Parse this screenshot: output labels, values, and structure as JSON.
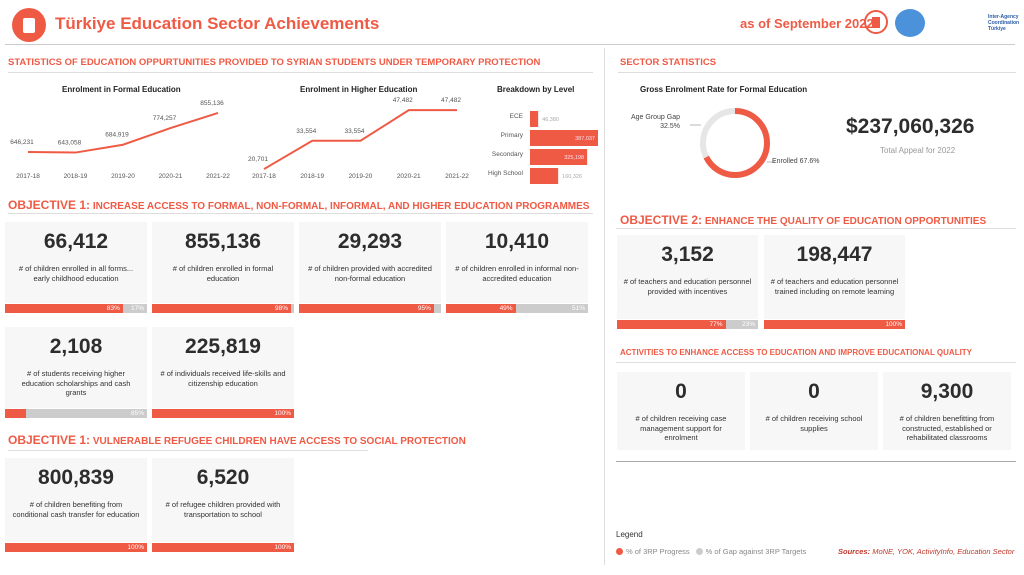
{
  "header": {
    "title": "Türkiye Education Sector Achievements",
    "as_of": "as of September 2022",
    "partner_text": "Inter-Agency Coordination Türkiye"
  },
  "left": {
    "section_title": "STATISTICS OF EDUCATION OPPURTUNITIES PROVIDED TO SYRIAN STUDENTS UNDER TEMPORARY PROTECTION",
    "objective1a": {
      "prefix": "OBJECTIVE 1:",
      "text": "INCREASE ACCESS TO FORMAL, NON-FORMAL, INFORMAL, AND HIGHER EDUCATION PROGRAMMES"
    },
    "objective1b": {
      "prefix": "OBJECTIVE 1:",
      "text": "VULNERABLE REFUGEE CHILDREN HAVE ACCESS TO SOCIAL PROTECTION"
    }
  },
  "chart_data": [
    {
      "type": "line",
      "title": "Enrolment in Formal Education",
      "categories": [
        "2017-18",
        "2018-19",
        "2019-20",
        "2020-21",
        "2021-22"
      ],
      "values": [
        646231,
        643058,
        684919,
        774257,
        855136
      ],
      "labels": [
        "646,231",
        "643,058",
        "684,919",
        "774,257",
        "855,136"
      ]
    },
    {
      "type": "line",
      "title": "Enrolment in Higher Education",
      "categories": [
        "2017-18",
        "2018-19",
        "2019-20",
        "2020-21",
        "2021-22"
      ],
      "values": [
        20701,
        33554,
        33554,
        47482,
        47482
      ],
      "labels": [
        "20,701",
        "33,554",
        "33,554",
        "47,482",
        "47,482"
      ]
    },
    {
      "type": "bar",
      "title": "Breakdown by Level",
      "categories": [
        "ECE",
        "Primary",
        "Secondary",
        "High School"
      ],
      "values": [
        46380,
        387037,
        325198,
        160326
      ],
      "labels": [
        "46,380",
        "387,037",
        "325,198",
        "160,326"
      ]
    },
    {
      "type": "pie",
      "title": "Gross Enrolment Rate for Formal Education",
      "slices": [
        {
          "name": "Enrolled",
          "value": 67.6,
          "label": "Enrolled 67.6%"
        },
        {
          "name": "Age Group Gap",
          "value": 32.5,
          "label": "Age Group Gap",
          "pct": "32.5%"
        }
      ]
    }
  ],
  "cards_obj1a": [
    {
      "num": "66,412",
      "label": "# of children enrolled in all forms... early childhood education",
      "progress": 83,
      "gap": 17,
      "p_label": "83%",
      "g_label": "17%"
    },
    {
      "num": "855,136",
      "label": "# of children enrolled in formal education",
      "progress": 98,
      "gap": 2,
      "p_label": "98%",
      "g_label": ""
    },
    {
      "num": "29,293",
      "label": "# of children provided with accredited non-formal education",
      "progress": 95,
      "gap": 5,
      "p_label": "95%",
      "g_label": ""
    },
    {
      "num": "10,410",
      "label": "# of children enrolled in informal non-accredited education",
      "progress": 49,
      "gap": 51,
      "p_label": "49%",
      "g_label": "51%"
    },
    {
      "num": "2,108",
      "label": "# of students receiving higher education scholarships and cash grants",
      "progress": 15,
      "gap": 85,
      "p_label": "",
      "g_label": "85%"
    },
    {
      "num": "225,819",
      "label": "# of individuals received life-skills and citizenship education",
      "progress": 100,
      "gap": 0,
      "p_label": "100%",
      "g_label": ""
    }
  ],
  "cards_obj1b": [
    {
      "num": "800,839",
      "label": "# of children benefiting from conditional cash transfer for education",
      "progress": 100,
      "gap": 0,
      "p_label": "100%",
      "g_label": ""
    },
    {
      "num": "6,520",
      "label": "# of refugee children provided with transportation to school",
      "progress": 100,
      "gap": 0,
      "p_label": "100%",
      "g_label": ""
    }
  ],
  "right": {
    "section_title": "SECTOR STATISTICS",
    "appeal": "$237,060,326",
    "appeal_label": "Total Appeal for 2022",
    "objective2": {
      "prefix": "OBJECTIVE 2:",
      "text": "ENHANCE THE QUALITY OF EDUCATION OPPORTUNITIES"
    },
    "activities_title": "ACTIVITIES TO ENHANCE ACCESS TO EDUCATION AND IMPROVE EDUCATIONAL QUALITY",
    "legend_title": "Legend",
    "legend_progress": "% of 3RP Progress",
    "legend_gap": "% of Gap against 3RP Targets",
    "sources_label": "Sources:",
    "sources": "MoNE, YOK, ActivityInfo, Education Sector"
  },
  "cards_obj2": [
    {
      "num": "3,152",
      "label": "# of teachers and education personnel provided with incentives",
      "progress": 77,
      "gap": 23,
      "p_label": "77%",
      "g_label": "23%"
    },
    {
      "num": "198,447",
      "label": "# of teachers and education personnel trained including on remote learning",
      "progress": 100,
      "gap": 0,
      "p_label": "100%",
      "g_label": ""
    }
  ],
  "cards_act": [
    {
      "num": "0",
      "label": "# of children receiving case management support for enrolment"
    },
    {
      "num": "0",
      "label": "# of children receiving school supplies"
    },
    {
      "num": "9,300",
      "label": "# of children benefitting from constructed, established or rehabilitated classrooms"
    }
  ],
  "colors": {
    "accent": "#ef5a45",
    "gap": "#cccccc"
  }
}
